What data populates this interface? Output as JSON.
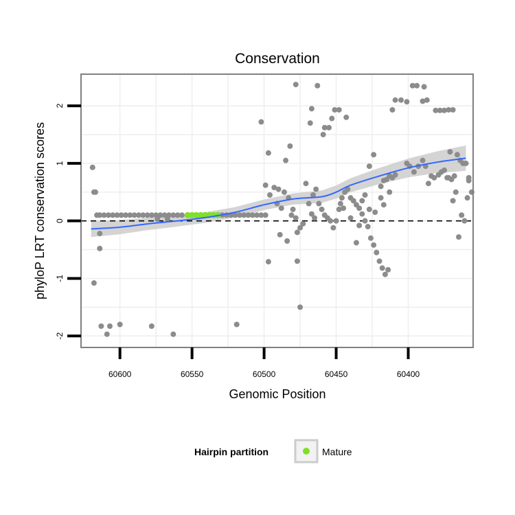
{
  "chart_data": {
    "type": "scatter",
    "title": "Conservation",
    "xlabel": "Genomic Position",
    "ylabel": "phyloP LRT conservation scores",
    "x_reversed": true,
    "xlim": [
      60627,
      60355
    ],
    "ylim": [
      -2.2,
      2.55
    ],
    "x_ticks": [
      60600,
      60550,
      60500,
      60450,
      60400
    ],
    "y_ticks": [
      -2,
      -1,
      0,
      1,
      2
    ],
    "x_tick_labels": [
      "60600",
      "60550",
      "60500",
      "60450",
      "60400"
    ],
    "y_tick_labels": [
      "-2",
      "-1",
      "0",
      "1",
      "2"
    ],
    "reference_line_y": 0,
    "grid": true,
    "legend": {
      "title": "Hairpin partition",
      "entries": [
        {
          "label": "Mature",
          "color": "#7fe026"
        }
      ],
      "position": "bottom"
    },
    "colors": {
      "points": "#8c8c8c",
      "mature": "#7fe026",
      "smooth_line": "#3366ff",
      "confidence_band": "#cccccc",
      "panel_background": "#ffffff",
      "grid": "#eeeeee"
    },
    "series": [
      {
        "name": "Mature",
        "type": "scatter",
        "points": [
          [
            60553,
            0.1
          ],
          [
            60550,
            0.1
          ],
          [
            60547,
            0.1
          ],
          [
            60544,
            0.1
          ],
          [
            60541,
            0.1
          ],
          [
            60538,
            0.1
          ],
          [
            60535,
            0.1
          ],
          [
            60532,
            0.1
          ]
        ]
      },
      {
        "type": "scatter",
        "points": [
          [
            60619,
            0.93
          ],
          [
            60618,
            0.5
          ],
          [
            60617,
            0.5
          ],
          [
            60616,
            0.1
          ],
          [
            60614,
            -0.22
          ],
          [
            60614,
            -0.48
          ],
          [
            60618,
            -1.08
          ],
          [
            60613,
            -1.83
          ],
          [
            60609,
            -1.97
          ],
          [
            60607,
            -1.83
          ],
          [
            60600,
            -1.8
          ],
          [
            60578,
            -1.83
          ],
          [
            60563,
            -1.97
          ],
          [
            60519,
            -1.8
          ],
          [
            60614,
            0.1
          ],
          [
            60611,
            0.1
          ],
          [
            60608,
            0.1
          ],
          [
            60605,
            0.1
          ],
          [
            60602,
            0.1
          ],
          [
            60599,
            0.1
          ],
          [
            60596,
            0.1
          ],
          [
            60593,
            0.1
          ],
          [
            60590,
            0.1
          ],
          [
            60587,
            0.1
          ],
          [
            60584,
            0.1
          ],
          [
            60581,
            0.1
          ],
          [
            60578,
            0.1
          ],
          [
            60575,
            0.1
          ],
          [
            60572,
            0.1
          ],
          [
            60569,
            0.1
          ],
          [
            60566,
            0.1
          ],
          [
            60563,
            0.1
          ],
          [
            60560,
            0.1
          ],
          [
            60557,
            0.1
          ],
          [
            60529,
            0.1
          ],
          [
            60526,
            0.1
          ],
          [
            60523,
            0.1
          ],
          [
            60520,
            0.1
          ],
          [
            60517,
            0.1
          ],
          [
            60514,
            0.1
          ],
          [
            60511,
            0.1
          ],
          [
            60508,
            0.1
          ],
          [
            60505,
            0.1
          ],
          [
            60502,
            0.1
          ],
          [
            60499,
            0.1
          ],
          [
            60574,
            0.03
          ],
          [
            60567,
            0.03
          ],
          [
            60502,
            1.72
          ],
          [
            60497,
            1.18
          ],
          [
            60485,
            1.05
          ],
          [
            60482,
            1.3
          ],
          [
            60499,
            0.62
          ],
          [
            60496,
            0.45
          ],
          [
            60493,
            0.58
          ],
          [
            60491,
            0.3
          ],
          [
            60490,
            0.55
          ],
          [
            60488,
            0.22
          ],
          [
            60486,
            0.5
          ],
          [
            60483,
            0.4
          ],
          [
            60481,
            0.1
          ],
          [
            60480,
            0.2
          ],
          [
            60478,
            0.05
          ],
          [
            60497,
            -0.71
          ],
          [
            60489,
            -0.24
          ],
          [
            60484,
            -0.35
          ],
          [
            60477,
            -0.2
          ],
          [
            60475,
            -0.12
          ],
          [
            60473,
            -0.05
          ],
          [
            60477,
            -0.7
          ],
          [
            60475,
            -1.5
          ],
          [
            60471,
            0.65
          ],
          [
            60469,
            0.3
          ],
          [
            60467,
            0.12
          ],
          [
            60465,
            0.05
          ],
          [
            60478,
            2.37
          ],
          [
            60467,
            1.95
          ],
          [
            60468,
            1.7
          ],
          [
            60466,
            0.45
          ],
          [
            60464,
            0.55
          ],
          [
            60462,
            0.3
          ],
          [
            60460,
            0.2
          ],
          [
            60458,
            0.1
          ],
          [
            60456,
            0.05
          ],
          [
            60454,
            0.0
          ],
          [
            60452,
            -0.12
          ],
          [
            60450,
            0.0
          ],
          [
            60448,
            0.2
          ],
          [
            60446,
            0.4
          ],
          [
            60444,
            0.5
          ],
          [
            60442,
            0.55
          ],
          [
            60440,
            0.4
          ],
          [
            60438,
            0.35
          ],
          [
            60436,
            0.28
          ],
          [
            60434,
            0.22
          ],
          [
            60432,
            0.12
          ],
          [
            60430,
            0.0
          ],
          [
            60428,
            -0.1
          ],
          [
            60426,
            -0.3
          ],
          [
            60424,
            -0.42
          ],
          [
            60422,
            -0.55
          ],
          [
            60420,
            -0.7
          ],
          [
            60418,
            -0.82
          ],
          [
            60416,
            -0.93
          ],
          [
            60414,
            -0.85
          ],
          [
            60463,
            2.35
          ],
          [
            60459,
            1.5
          ],
          [
            60458,
            1.62
          ],
          [
            60455,
            1.62
          ],
          [
            60453,
            1.78
          ],
          [
            60451,
            1.93
          ],
          [
            60448,
            1.93
          ],
          [
            60443,
            1.8
          ],
          [
            60447,
            0.3
          ],
          [
            60445,
            0.22
          ],
          [
            60440,
            0.05
          ],
          [
            60436,
            -0.38
          ],
          [
            60434,
            -0.08
          ],
          [
            60432,
            0.35
          ],
          [
            60430,
            0.45
          ],
          [
            60427,
            0.95
          ],
          [
            60424,
            1.15
          ],
          [
            60419,
            0.6
          ],
          [
            60417,
            0.7
          ],
          [
            60415,
            0.72
          ],
          [
            60413,
            0.78
          ],
          [
            60411,
            0.75
          ],
          [
            60409,
            0.8
          ],
          [
            60427,
            0.2
          ],
          [
            60423,
            0.15
          ],
          [
            60419,
            0.4
          ],
          [
            60417,
            0.28
          ],
          [
            60413,
            0.5
          ],
          [
            60409,
            2.1
          ],
          [
            60405,
            2.1
          ],
          [
            60401,
            2.07
          ],
          [
            60397,
            2.35
          ],
          [
            60394,
            2.35
          ],
          [
            60389,
            2.33
          ],
          [
            60390,
            2.08
          ],
          [
            60387,
            2.1
          ],
          [
            60381,
            1.92
          ],
          [
            60378,
            1.92
          ],
          [
            60375,
            1.92
          ],
          [
            60372,
            1.93
          ],
          [
            60369,
            1.93
          ],
          [
            60411,
            1.93
          ],
          [
            60401,
            1.0
          ],
          [
            60399,
            0.95
          ],
          [
            60396,
            0.85
          ],
          [
            60393,
            0.95
          ],
          [
            60390,
            1.05
          ],
          [
            60388,
            0.95
          ],
          [
            60386,
            0.65
          ],
          [
            60384,
            0.78
          ],
          [
            60382,
            0.75
          ],
          [
            60379,
            0.8
          ],
          [
            60377,
            0.85
          ],
          [
            60375,
            0.88
          ],
          [
            60373,
            0.75
          ],
          [
            60370,
            0.72
          ],
          [
            60368,
            0.78
          ],
          [
            60366,
            1.15
          ],
          [
            60364,
            1.05
          ],
          [
            60362,
            1.0
          ],
          [
            60360,
            1.0
          ],
          [
            60358,
            0.7
          ],
          [
            60356,
            0.5
          ],
          [
            60372,
            0.75
          ],
          [
            60371,
            1.2
          ],
          [
            60369,
            0.35
          ],
          [
            60367,
            0.5
          ],
          [
            60365,
            -0.28
          ],
          [
            60363,
            0.1
          ],
          [
            60361,
            0.0
          ],
          [
            60359,
            0.4
          ],
          [
            60358,
            0.75
          ]
        ]
      }
    ],
    "smooth": {
      "x": [
        60620,
        60600,
        60580,
        60560,
        60540,
        60520,
        60500,
        60480,
        60460,
        60450,
        60440,
        60420,
        60400,
        60380,
        60360
      ],
      "y": [
        -0.14,
        -0.11,
        -0.05,
        0.0,
        0.06,
        0.15,
        0.28,
        0.38,
        0.42,
        0.5,
        0.62,
        0.78,
        0.92,
        1.02,
        1.09
      ]
    }
  }
}
